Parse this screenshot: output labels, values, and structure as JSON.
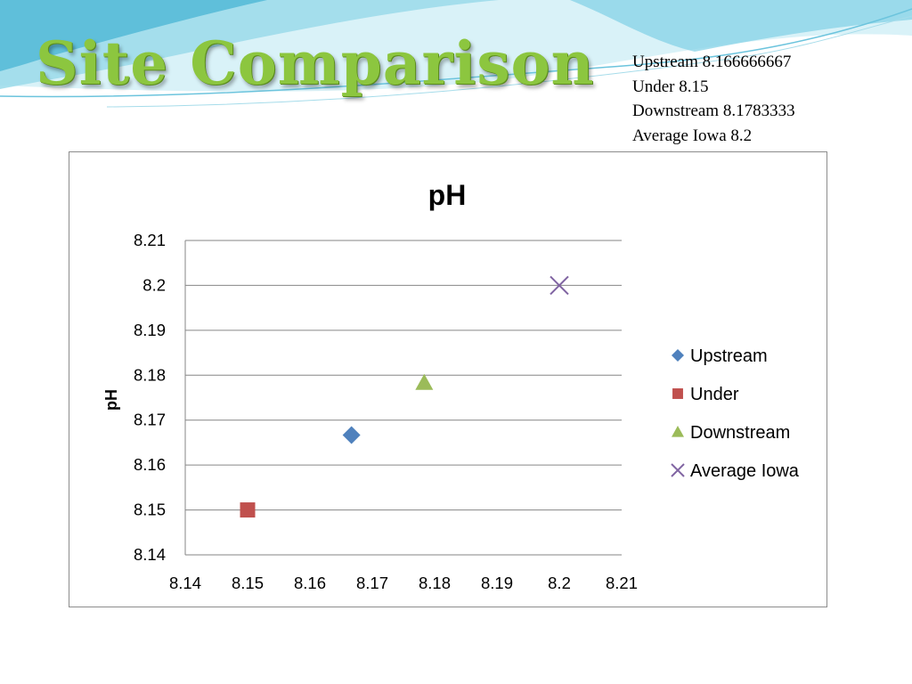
{
  "slide": {
    "title": "Site Comparison",
    "values": [
      "Upstream 8.166666667",
      "Under 8.15",
      "Downstream 8.1783333",
      "Average Iowa 8.2"
    ]
  },
  "colors": {
    "title": "#8cc63f",
    "wave_light": "#cdeef6",
    "wave_mid": "#7fd0e6",
    "wave_dark": "#2fa8cc"
  },
  "chart_data": {
    "type": "scatter",
    "title": "pH",
    "xlabel": "",
    "ylabel": "pH",
    "xlim": [
      8.14,
      8.21
    ],
    "ylim": [
      8.14,
      8.21
    ],
    "x_ticks": [
      "8.14",
      "8.15",
      "8.16",
      "8.17",
      "8.18",
      "8.19",
      "8.2",
      "8.21"
    ],
    "y_ticks": [
      "8.14",
      "8.15",
      "8.16",
      "8.17",
      "8.18",
      "8.19",
      "8.2",
      "8.21"
    ],
    "grid": "horizontal",
    "legend_position": "right",
    "series": [
      {
        "name": "Upstream",
        "marker": "diamond",
        "color": "#4f81bd",
        "points": [
          {
            "x": 8.166666667,
            "y": 8.166666667
          }
        ]
      },
      {
        "name": "Under",
        "marker": "square",
        "color": "#c0504d",
        "points": [
          {
            "x": 8.15,
            "y": 8.15
          }
        ]
      },
      {
        "name": "Downstream",
        "marker": "triangle",
        "color": "#9bbb59",
        "points": [
          {
            "x": 8.1783333,
            "y": 8.1783333
          }
        ]
      },
      {
        "name": "Average Iowa",
        "marker": "x",
        "color": "#8064a2",
        "points": [
          {
            "x": 8.2,
            "y": 8.2
          }
        ]
      }
    ]
  }
}
